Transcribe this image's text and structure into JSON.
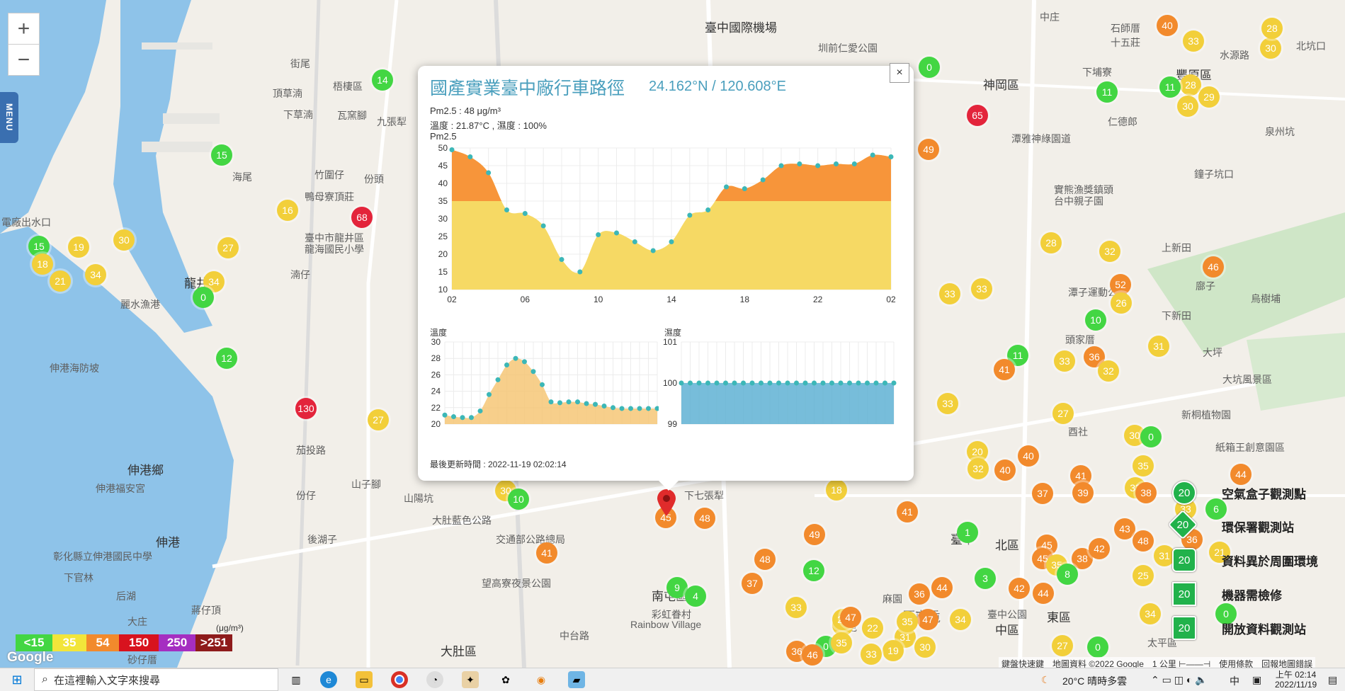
{
  "map": {
    "zoom_in": "+",
    "zoom_out": "−",
    "menu_label": "MENU",
    "places": [
      {
        "text": "臺中國際機場"
      },
      {
        "text": "圳前仁愛公園"
      },
      {
        "text": "神岡區"
      },
      {
        "text": "中庄"
      },
      {
        "text": "石師厝"
      },
      {
        "text": "十五莊"
      },
      {
        "text": "豐原區"
      },
      {
        "text": "北坑口"
      },
      {
        "text": "水源路"
      },
      {
        "text": "下埔寮"
      },
      {
        "text": "仁德郎"
      },
      {
        "text": "泉州坑"
      },
      {
        "text": "鐘子坑口"
      },
      {
        "text": "潭雅神綠園道"
      },
      {
        "text": "實熊漁獎鎮頭"
      },
      {
        "text": "台中親子園"
      },
      {
        "text": "街尾"
      },
      {
        "text": "頂草湳"
      },
      {
        "text": "下草湳"
      },
      {
        "text": "梧棲區"
      },
      {
        "text": "瓦窯腳"
      },
      {
        "text": "九張犁"
      },
      {
        "text": "海尾"
      },
      {
        "text": "竹圍仔"
      },
      {
        "text": "份頭"
      },
      {
        "text": "鴨母寮頂莊"
      },
      {
        "text": "臺中市龍井區"
      },
      {
        "text": "龍海國民小學"
      },
      {
        "text": "龍井"
      },
      {
        "text": "湳仔"
      },
      {
        "text": "電廠出水口"
      },
      {
        "text": "麗水漁港"
      },
      {
        "text": "伸港海防坡"
      },
      {
        "text": "伸港鄉"
      },
      {
        "text": "伸港福安宮"
      },
      {
        "text": "伸港"
      },
      {
        "text": "彰化縣立伸港國民中學"
      },
      {
        "text": "下官林"
      },
      {
        "text": "后湖"
      },
      {
        "text": "大庄"
      },
      {
        "text": "砂仔厝"
      },
      {
        "text": "蔣仔頂"
      },
      {
        "text": "茄投路"
      },
      {
        "text": "份仔"
      },
      {
        "text": "山子腳"
      },
      {
        "text": "後湖子"
      },
      {
        "text": "大肚藍色公路"
      },
      {
        "text": "交通部公路總局"
      },
      {
        "text": "望高寮夜景公園"
      },
      {
        "text": "南屯區"
      },
      {
        "text": "彩虹眷村"
      },
      {
        "text": "Rainbow Village"
      },
      {
        "text": "大肚區"
      },
      {
        "text": "中台路"
      },
      {
        "text": "山陽坑"
      },
      {
        "text": "下七張犁"
      },
      {
        "text": "臺中"
      },
      {
        "text": "北區"
      },
      {
        "text": "西屯區"
      },
      {
        "text": "中區"
      },
      {
        "text": "東區"
      },
      {
        "text": "臺中公園"
      },
      {
        "text": "太平區"
      },
      {
        "text": "大坑風景區"
      },
      {
        "text": "新桐植物園"
      },
      {
        "text": "大坪"
      },
      {
        "text": "頭家厝"
      },
      {
        "text": "上新田"
      },
      {
        "text": "烏樹埔"
      },
      {
        "text": "廍子"
      },
      {
        "text": "潭子運動公園"
      },
      {
        "text": "西屯"
      },
      {
        "text": "麻園"
      },
      {
        "text": "南屯"
      },
      {
        "text": "酉社"
      },
      {
        "text": "下新田"
      },
      {
        "text": "紙箱王創意園區"
      }
    ]
  },
  "popup": {
    "title": "國產實業臺中廠行車路徑",
    "coord": "24.162°N / 120.608°E",
    "close": "×",
    "pm25_line": "Pm2.5 : 48 μg/m³",
    "temp_line": "溫度 : 21.87°C , 濕度 : 100%",
    "pm25_title": "Pm2.5",
    "temp_title": "溫度",
    "hum_title": "濕度",
    "updated": "最後更新時間 : 2022-11-19 02:02:14"
  },
  "chart_data": [
    {
      "type": "area",
      "title": "Pm2.5",
      "x": [
        "02",
        "03",
        "04",
        "05",
        "06",
        "07",
        "08",
        "09",
        "10",
        "11",
        "12",
        "13",
        "14",
        "15",
        "16",
        "17",
        "18",
        "19",
        "20",
        "21",
        "22",
        "23",
        "00",
        "01",
        "02"
      ],
      "x_ticks": [
        "02",
        "06",
        "10",
        "14",
        "18",
        "22",
        "02"
      ],
      "y": [
        49.5,
        47.5,
        43,
        32.5,
        31.5,
        28,
        18.5,
        15,
        25.5,
        26,
        23.5,
        21,
        23.5,
        31,
        32.5,
        39,
        38.5,
        41,
        45,
        45.5,
        45,
        45.5,
        45.5,
        48,
        47.5
      ],
      "ylim": [
        10,
        50
      ],
      "y_ticks": [
        10,
        15,
        20,
        25,
        30,
        35,
        40,
        45,
        50
      ],
      "threshold": 35,
      "colors": {
        "above": "#f7953a",
        "below": "#f6d964",
        "point": "#3cb7b7"
      }
    },
    {
      "type": "area",
      "title": "溫度",
      "x": [
        "02",
        "03",
        "04",
        "05",
        "06",
        "07",
        "08",
        "09",
        "10",
        "11",
        "12",
        "13",
        "14",
        "15",
        "16",
        "17",
        "18",
        "19",
        "20",
        "21",
        "22",
        "23",
        "00",
        "01",
        "02"
      ],
      "y": [
        21.1,
        20.9,
        20.8,
        20.8,
        21.6,
        23.6,
        25.4,
        27.2,
        28.0,
        27.6,
        26.4,
        24.8,
        22.7,
        22.6,
        22.7,
        22.7,
        22.5,
        22.4,
        22.2,
        22.0,
        21.9,
        21.9,
        21.9,
        21.9,
        21.9
      ],
      "ylim": [
        20,
        30
      ],
      "y_ticks": [
        20,
        22,
        24,
        26,
        28,
        30
      ],
      "colors": {
        "fill": "#f6c777",
        "point": "#3cb7b7"
      }
    },
    {
      "type": "area",
      "title": "濕度",
      "x": [
        "02",
        "03",
        "04",
        "05",
        "06",
        "07",
        "08",
        "09",
        "10",
        "11",
        "12",
        "13",
        "14",
        "15",
        "16",
        "17",
        "18",
        "19",
        "20",
        "21",
        "22",
        "23",
        "00",
        "01",
        "02"
      ],
      "y": [
        100,
        100,
        100,
        100,
        100,
        100,
        100,
        100,
        100,
        100,
        100,
        100,
        100,
        100,
        100,
        100,
        100,
        100,
        100,
        100,
        100,
        100,
        100,
        100,
        100
      ],
      "ylim": [
        99,
        101
      ],
      "y_ticks": [
        99,
        100,
        101
      ],
      "colors": {
        "fill": "#5fb1d3",
        "point": "#3cb7b7"
      }
    }
  ],
  "markers": [
    {
      "v": "14",
      "c": "#43d643"
    },
    {
      "v": "15",
      "c": "#43d643"
    },
    {
      "v": "16",
      "c": "#f2cf3a"
    },
    {
      "v": "68",
      "c": "#e3243b"
    },
    {
      "v": "27",
      "c": "#f2cf3a"
    },
    {
      "v": "30",
      "c": "#f2cf3a"
    },
    {
      "v": "19",
      "c": "#f2cf3a"
    },
    {
      "v": "15",
      "c": "#43d643"
    },
    {
      "v": "18",
      "c": "#f2cf3a"
    },
    {
      "v": "21",
      "c": "#f2cf3a"
    },
    {
      "v": "34",
      "c": "#f2cf3a"
    },
    {
      "v": "34",
      "c": "#f2cf3a"
    },
    {
      "v": "0",
      "c": "#43d643"
    },
    {
      "v": "12",
      "c": "#43d643"
    },
    {
      "v": "130",
      "c": "#e3243b"
    },
    {
      "v": "27",
      "c": "#f2cf3a"
    },
    {
      "v": "30",
      "c": "#f2cf3a"
    },
    {
      "v": "10",
      "c": "#43d643"
    },
    {
      "v": "41",
      "c": "#f28a2c"
    },
    {
      "v": "45",
      "c": "#f28a2c"
    },
    {
      "v": "48",
      "c": "#f28a2c"
    },
    {
      "v": "9",
      "c": "#43d643"
    },
    {
      "v": "4",
      "c": "#43d643"
    },
    {
      "v": "27",
      "c": "#f2cf3a"
    },
    {
      "v": "0",
      "c": "#43d643"
    },
    {
      "v": "49",
      "c": "#f28a2c"
    },
    {
      "v": "65",
      "c": "#e3243b"
    },
    {
      "v": "40",
      "c": "#f28a2c"
    },
    {
      "v": "33",
      "c": "#f2cf3a"
    },
    {
      "v": "30",
      "c": "#f2cf3a"
    },
    {
      "v": "28",
      "c": "#f2cf3a"
    },
    {
      "v": "11",
      "c": "#43d643"
    },
    {
      "v": "28",
      "c": "#f2cf3a"
    },
    {
      "v": "30",
      "c": "#f2cf3a"
    },
    {
      "v": "29",
      "c": "#f2cf3a"
    },
    {
      "v": "11",
      "c": "#43d643"
    },
    {
      "v": "33",
      "c": "#f2cf3a"
    },
    {
      "v": "28",
      "c": "#f2cf3a"
    },
    {
      "v": "52",
      "c": "#f28a2c"
    },
    {
      "v": "33",
      "c": "#f2cf3a"
    },
    {
      "v": "33",
      "c": "#f2cf3a"
    },
    {
      "v": "32",
      "c": "#f2cf3a"
    },
    {
      "v": "26",
      "c": "#f2cf3a"
    },
    {
      "v": "46",
      "c": "#f28a2c"
    },
    {
      "v": "10",
      "c": "#43d643"
    },
    {
      "v": "31",
      "c": "#f2cf3a"
    },
    {
      "v": "11",
      "c": "#43d643"
    },
    {
      "v": "41",
      "c": "#f28a2c"
    },
    {
      "v": "33",
      "c": "#f2cf3a"
    },
    {
      "v": "36",
      "c": "#f28a2c"
    },
    {
      "v": "32",
      "c": "#f2cf3a"
    },
    {
      "v": "27",
      "c": "#f2cf3a"
    },
    {
      "v": "30",
      "c": "#f2cf3a"
    },
    {
      "v": "0",
      "c": "#43d643"
    },
    {
      "v": "20",
      "c": "#f2cf3a"
    },
    {
      "v": "32",
      "c": "#f2cf3a"
    },
    {
      "v": "40",
      "c": "#f28a2c"
    },
    {
      "v": "40",
      "c": "#f28a2c"
    },
    {
      "v": "41",
      "c": "#f28a2c"
    },
    {
      "v": "35",
      "c": "#f2cf3a"
    },
    {
      "v": "33",
      "c": "#f2cf3a"
    },
    {
      "v": "6",
      "c": "#43d643"
    },
    {
      "v": "33",
      "c": "#f2cf3a"
    },
    {
      "v": "44",
      "c": "#f28a2c"
    },
    {
      "v": "38",
      "c": "#f28a2c"
    },
    {
      "v": "37",
      "c": "#f28a2c"
    },
    {
      "v": "39",
      "c": "#f28a2c"
    },
    {
      "v": "43",
      "c": "#f28a2c"
    },
    {
      "v": "18",
      "c": "#f2cf3a"
    },
    {
      "v": "41",
      "c": "#f28a2c"
    },
    {
      "v": "1",
      "c": "#43d643"
    },
    {
      "v": "45",
      "c": "#f28a2c"
    },
    {
      "v": "38",
      "c": "#f28a2c"
    },
    {
      "v": "42",
      "c": "#f28a2c"
    },
    {
      "v": "45",
      "c": "#f28a2c"
    },
    {
      "v": "35",
      "c": "#f2cf3a"
    },
    {
      "v": "48",
      "c": "#f28a2c"
    },
    {
      "v": "37",
      "c": "#f28a2c"
    },
    {
      "v": "49",
      "c": "#f28a2c"
    },
    {
      "v": "12",
      "c": "#43d643"
    },
    {
      "v": "42",
      "c": "#f28a2c"
    },
    {
      "v": "44",
      "c": "#f28a2c"
    },
    {
      "v": "3",
      "c": "#43d643"
    },
    {
      "v": "8",
      "c": "#43d643"
    },
    {
      "v": "33",
      "c": "#f2cf3a"
    },
    {
      "v": "29",
      "c": "#f2cf3a"
    },
    {
      "v": "22",
      "c": "#f2cf3a"
    },
    {
      "v": "36",
      "c": "#f28a2c"
    },
    {
      "v": "44",
      "c": "#f28a2c"
    },
    {
      "v": "47",
      "c": "#f28a2c"
    },
    {
      "v": "34",
      "c": "#f2cf3a"
    },
    {
      "v": "31",
      "c": "#f2cf3a"
    },
    {
      "v": "30",
      "c": "#f2cf3a"
    },
    {
      "v": "19",
      "c": "#f2cf3a"
    },
    {
      "v": "0",
      "c": "#43d643"
    },
    {
      "v": "36",
      "c": "#f28a2c"
    },
    {
      "v": "46",
      "c": "#f28a2c"
    },
    {
      "v": "33",
      "c": "#f2cf3a"
    },
    {
      "v": "35",
      "c": "#f2cf3a"
    },
    {
      "v": "27",
      "c": "#f2cf3a"
    },
    {
      "v": "0",
      "c": "#43d643"
    },
    {
      "v": "47",
      "c": "#f28a2c"
    },
    {
      "v": "35",
      "c": "#f2cf3a"
    },
    {
      "v": "25",
      "c": "#f2cf3a"
    },
    {
      "v": "34",
      "c": "#f2cf3a"
    },
    {
      "v": "31",
      "c": "#f2cf3a"
    },
    {
      "v": "48",
      "c": "#f28a2c"
    },
    {
      "v": "36",
      "c": "#f28a2c"
    },
    {
      "v": "21",
      "c": "#f2cf3a"
    },
    {
      "v": "0",
      "c": "#43d643"
    }
  ],
  "legend": {
    "unit": "(μg/m³)",
    "levels": [
      {
        "label": "<15",
        "color": "#43d643"
      },
      {
        "label": "35",
        "color": "#f2e53a"
      },
      {
        "label": "54",
        "color": "#f28a2c"
      },
      {
        "label": "150",
        "color": "#d8131e"
      },
      {
        "label": "250",
        "color": "#a52ec1"
      },
      {
        "label": ">251",
        "color": "#8e1b1b"
      }
    ],
    "stations": [
      {
        "icon": "20",
        "label": "空氣盒子觀測點"
      },
      {
        "icon": "20",
        "label": "環保署觀測站"
      },
      {
        "icon": "20",
        "label": "資料異於周圍環境"
      },
      {
        "icon": "20",
        "label": "機器需檢修"
      },
      {
        "icon": "20",
        "label": "開放資料觀測站"
      }
    ]
  },
  "attribution": {
    "logo": "Google",
    "text": "鍵盤快速鍵　地圖資料 ©2022 Google　1 公里 ⊢——⊣　使用條款　回報地圖錯誤"
  },
  "taskbar": {
    "search_placeholder": "在這裡輸入文字來搜尋",
    "weather": "20°C  晴時多雲",
    "ime": "中",
    "time": "上午 02:14",
    "date": "2022/11/19"
  }
}
